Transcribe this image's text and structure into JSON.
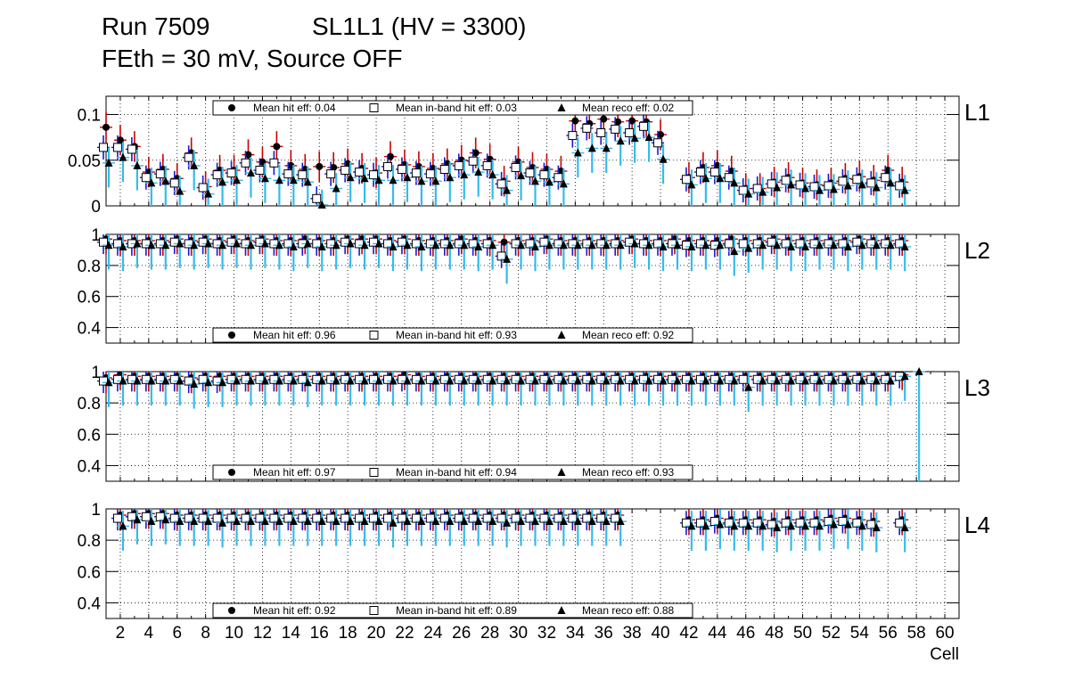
{
  "title": {
    "run": "Run 7509",
    "superlayer": "SL1L1 (HV = 3300)",
    "settings": "FEth = 30 mV, Source OFF"
  },
  "colors": {
    "hit": "#000000",
    "hit_err": "#cc0000",
    "inband_err": "#1a1acc",
    "reco_err": "#33bbee"
  },
  "chart_data": {
    "type": "scatter",
    "xlabel": "Cell",
    "xlim": [
      1,
      61
    ],
    "x_ticks": [
      "2",
      "4",
      "6",
      "8",
      "10",
      "12",
      "14",
      "16",
      "18",
      "20",
      "22",
      "24",
      "26",
      "28",
      "30",
      "32",
      "34",
      "36",
      "38",
      "40",
      "42",
      "44",
      "46",
      "48",
      "50",
      "52",
      "54",
      "56",
      "58",
      "60"
    ],
    "panels": [
      {
        "label": "L1",
        "ylim": [
          0,
          0.12
        ],
        "y_ticks": [
          "0",
          "0.05",
          "0.1"
        ],
        "legend": [
          "Mean hit  eff: 0.04",
          "Mean in-band hit eff: 0.03",
          "Mean reco eff: 0.02"
        ],
        "cells": [
          1,
          2,
          3,
          4,
          5,
          6,
          7,
          8,
          9,
          10,
          11,
          12,
          13,
          14,
          15,
          16,
          17,
          18,
          19,
          20,
          21,
          22,
          23,
          24,
          25,
          26,
          27,
          28,
          29,
          30,
          31,
          32,
          33,
          34,
          35,
          36,
          37,
          38,
          39,
          40,
          42,
          43,
          44,
          45,
          46,
          47,
          48,
          49,
          50,
          51,
          52,
          53,
          54,
          55,
          56,
          57
        ],
        "series": [
          {
            "name": "hit",
            "values": [
              0.086,
              0.072,
              0.065,
              0.037,
              0.04,
              0.03,
              0.058,
              0.021,
              0.039,
              0.039,
              0.056,
              0.048,
              0.065,
              0.044,
              0.04,
              0.043,
              0.042,
              0.046,
              0.041,
              0.036,
              0.054,
              0.045,
              0.043,
              0.041,
              0.046,
              0.05,
              0.058,
              0.051,
              0.027,
              0.048,
              0.042,
              0.04,
              0.038,
              0.093,
              0.09,
              0.095,
              0.092,
              0.093,
              0.092,
              0.078,
              0.031,
              0.042,
              0.044,
              0.038,
              0.019,
              0.019,
              0.026,
              0.031,
              0.025,
              0.023,
              0.025,
              0.03,
              0.032,
              0.028,
              0.039,
              0.026
            ]
          },
          {
            "name": "in-band hit",
            "values": [
              0.064,
              0.064,
              0.062,
              0.031,
              0.035,
              0.025,
              0.053,
              0.02,
              0.034,
              0.036,
              0.047,
              0.039,
              0.047,
              0.035,
              0.034,
              0.008,
              0.035,
              0.039,
              0.037,
              0.034,
              0.043,
              0.04,
              0.036,
              0.035,
              0.04,
              0.044,
              0.049,
              0.044,
              0.024,
              0.042,
              0.036,
              0.034,
              0.031,
              0.077,
              0.085,
              0.08,
              0.084,
              0.08,
              0.087,
              0.069,
              0.029,
              0.037,
              0.037,
              0.031,
              0.017,
              0.019,
              0.024,
              0.028,
              0.023,
              0.021,
              0.022,
              0.027,
              0.029,
              0.025,
              0.031,
              0.022
            ]
          },
          {
            "name": "reco",
            "values": [
              0.047,
              0.053,
              0.044,
              0.025,
              0.027,
              0.016,
              0.044,
              0.013,
              0.026,
              0.028,
              0.036,
              0.03,
              0.028,
              0.028,
              0.026,
              0.001,
              0.019,
              0.031,
              0.03,
              0.028,
              0.028,
              0.031,
              0.027,
              0.027,
              0.031,
              0.034,
              0.037,
              0.034,
              0.017,
              0.033,
              0.027,
              0.026,
              0.024,
              0.058,
              0.063,
              0.063,
              0.071,
              0.074,
              0.075,
              0.051,
              0.023,
              0.03,
              0.03,
              0.025,
              0.013,
              0.015,
              0.02,
              0.023,
              0.019,
              0.017,
              0.018,
              0.022,
              0.023,
              0.02,
              0.025,
              0.017
            ]
          }
        ]
      },
      {
        "label": "L2",
        "ylim": [
          0.3,
          1.0
        ],
        "y_ticks": [
          "0.4",
          "0.6",
          "0.8",
          "1"
        ],
        "legend": [
          "Mean hit  eff: 0.96",
          "Mean in-band hit eff: 0.93",
          "Mean reco eff: 0.92"
        ],
        "cells": [
          1,
          2,
          3,
          4,
          5,
          6,
          7,
          8,
          9,
          10,
          11,
          12,
          13,
          14,
          15,
          16,
          17,
          18,
          19,
          20,
          21,
          22,
          23,
          24,
          25,
          26,
          27,
          28,
          29,
          30,
          31,
          32,
          33,
          34,
          35,
          36,
          37,
          38,
          39,
          40,
          41,
          42,
          43,
          44,
          45,
          46,
          47,
          48,
          49,
          50,
          51,
          52,
          53,
          54,
          55,
          56,
          57
        ],
        "series": [
          {
            "name": "hit",
            "values": [
              0.97,
              0.96,
              0.96,
              0.96,
              0.96,
              0.97,
              0.96,
              0.97,
              0.96,
              0.97,
              0.96,
              0.97,
              0.96,
              0.96,
              0.97,
              0.96,
              0.96,
              0.97,
              0.97,
              0.97,
              0.96,
              0.97,
              0.96,
              0.96,
              0.96,
              0.97,
              0.96,
              0.96,
              0.95,
              0.96,
              0.96,
              0.97,
              0.96,
              0.96,
              0.96,
              0.96,
              0.96,
              0.97,
              0.96,
              0.96,
              0.97,
              0.96,
              0.96,
              0.96,
              0.97,
              0.96,
              0.96,
              0.97,
              0.96,
              0.96,
              0.96,
              0.96,
              0.96,
              0.97,
              0.96,
              0.96,
              0.96
            ]
          },
          {
            "name": "in-band hit",
            "values": [
              0.95,
              0.94,
              0.94,
              0.94,
              0.94,
              0.95,
              0.94,
              0.95,
              0.94,
              0.95,
              0.94,
              0.95,
              0.94,
              0.94,
              0.94,
              0.94,
              0.94,
              0.95,
              0.94,
              0.95,
              0.94,
              0.95,
              0.94,
              0.94,
              0.94,
              0.94,
              0.94,
              0.94,
              0.86,
              0.94,
              0.94,
              0.95,
              0.94,
              0.94,
              0.94,
              0.94,
              0.94,
              0.95,
              0.94,
              0.94,
              0.94,
              0.93,
              0.94,
              0.93,
              0.94,
              0.94,
              0.94,
              0.95,
              0.94,
              0.94,
              0.94,
              0.94,
              0.94,
              0.95,
              0.94,
              0.94,
              0.94
            ]
          },
          {
            "name": "reco",
            "values": [
              0.93,
              0.92,
              0.94,
              0.93,
              0.93,
              0.94,
              0.93,
              0.94,
              0.93,
              0.94,
              0.93,
              0.94,
              0.93,
              0.92,
              0.94,
              0.92,
              0.93,
              0.94,
              0.93,
              0.94,
              0.92,
              0.93,
              0.92,
              0.93,
              0.93,
              0.93,
              0.92,
              0.93,
              0.84,
              0.93,
              0.92,
              0.93,
              0.93,
              0.93,
              0.93,
              0.93,
              0.93,
              0.94,
              0.93,
              0.92,
              0.93,
              0.92,
              0.93,
              0.93,
              0.89,
              0.91,
              0.93,
              0.93,
              0.92,
              0.92,
              0.93,
              0.93,
              0.92,
              0.93,
              0.93,
              0.93,
              0.92
            ]
          }
        ]
      },
      {
        "label": "L3",
        "ylim": [
          0.3,
          1.0
        ],
        "y_ticks": [
          "0.4",
          "0.6",
          "0.8",
          "1"
        ],
        "legend": [
          "Mean hit  eff: 0.97",
          "Mean in-band hit eff: 0.94",
          "Mean reco eff: 0.93"
        ],
        "cells": [
          1,
          2,
          3,
          4,
          5,
          6,
          7,
          8,
          9,
          10,
          11,
          12,
          13,
          14,
          15,
          16,
          17,
          18,
          19,
          20,
          21,
          22,
          23,
          24,
          25,
          26,
          27,
          28,
          29,
          30,
          31,
          32,
          33,
          34,
          35,
          36,
          37,
          38,
          39,
          40,
          41,
          42,
          43,
          44,
          45,
          46,
          47,
          48,
          49,
          50,
          51,
          52,
          53,
          54,
          55,
          56,
          57,
          58
        ],
        "series": [
          {
            "name": "hit",
            "values": [
              0.96,
              0.98,
              0.97,
              0.97,
              0.97,
              0.97,
              0.96,
              0.97,
              0.97,
              0.97,
              0.97,
              0.97,
              0.97,
              0.97,
              0.97,
              0.97,
              0.97,
              0.97,
              0.97,
              0.97,
              0.97,
              0.98,
              0.97,
              0.97,
              0.97,
              0.97,
              0.97,
              0.97,
              0.97,
              0.97,
              0.97,
              0.97,
              0.97,
              0.97,
              0.97,
              0.97,
              0.97,
              0.97,
              0.97,
              0.97,
              0.97,
              0.97,
              0.97,
              0.97,
              0.97,
              0.97,
              0.97,
              0.97,
              0.97,
              0.97,
              0.97,
              0.97,
              0.97,
              0.97,
              0.97,
              0.97,
              0.98,
              null
            ]
          },
          {
            "name": "in-band hit",
            "values": [
              0.94,
              0.95,
              0.95,
              0.95,
              0.95,
              0.95,
              0.94,
              0.95,
              0.94,
              0.95,
              0.95,
              0.95,
              0.95,
              0.95,
              0.95,
              0.95,
              0.95,
              0.95,
              0.95,
              0.95,
              0.95,
              0.95,
              0.95,
              0.95,
              0.95,
              0.95,
              0.95,
              0.95,
              0.95,
              0.95,
              0.95,
              0.95,
              0.95,
              0.95,
              0.95,
              0.95,
              0.95,
              0.95,
              0.95,
              0.95,
              0.95,
              0.95,
              0.95,
              0.95,
              0.95,
              0.95,
              0.95,
              0.95,
              0.95,
              0.95,
              0.95,
              0.95,
              0.95,
              0.95,
              0.95,
              0.95,
              0.97,
              null
            ]
          },
          {
            "name": "reco",
            "values": [
              0.93,
              0.94,
              0.94,
              0.94,
              0.94,
              0.94,
              0.92,
              0.93,
              0.93,
              0.94,
              0.94,
              0.94,
              0.94,
              0.94,
              0.93,
              0.94,
              0.94,
              0.94,
              0.94,
              0.94,
              0.94,
              0.94,
              0.94,
              0.94,
              0.94,
              0.94,
              0.94,
              0.94,
              0.94,
              0.94,
              0.94,
              0.94,
              0.94,
              0.94,
              0.94,
              0.94,
              0.94,
              0.94,
              0.94,
              0.94,
              0.94,
              0.94,
              0.94,
              0.94,
              0.94,
              0.9,
              0.94,
              0.94,
              0.94,
              0.94,
              0.94,
              0.94,
              0.94,
              0.94,
              0.94,
              0.94,
              0.97,
              1.0
            ]
          }
        ]
      },
      {
        "label": "L4",
        "ylim": [
          0.3,
          1.0
        ],
        "y_ticks": [
          "0.4",
          "0.6",
          "0.8",
          "1"
        ],
        "legend": [
          "Mean hit  eff: 0.92",
          "Mean in-band hit eff: 0.89",
          "Mean reco eff: 0.88"
        ],
        "cells": [
          2,
          3,
          4,
          5,
          6,
          7,
          8,
          9,
          10,
          11,
          12,
          13,
          14,
          15,
          16,
          17,
          18,
          19,
          20,
          21,
          22,
          23,
          24,
          25,
          26,
          27,
          28,
          29,
          30,
          31,
          32,
          33,
          34,
          35,
          36,
          37,
          42,
          43,
          44,
          45,
          46,
          47,
          48,
          49,
          50,
          51,
          52,
          53,
          54,
          55,
          57
        ],
        "series": [
          {
            "name": "hit",
            "values": [
              0.96,
              0.97,
              0.97,
              0.97,
              0.96,
              0.96,
              0.96,
              0.96,
              0.96,
              0.96,
              0.96,
              0.96,
              0.96,
              0.96,
              0.96,
              0.96,
              0.96,
              0.96,
              0.96,
              0.96,
              0.96,
              0.96,
              0.96,
              0.96,
              0.96,
              0.96,
              0.96,
              0.96,
              0.96,
              0.96,
              0.96,
              0.96,
              0.96,
              0.96,
              0.96,
              0.96,
              0.93,
              0.93,
              0.94,
              0.93,
              0.93,
              0.93,
              0.92,
              0.93,
              0.93,
              0.93,
              0.94,
              0.94,
              0.93,
              0.92,
              0.93
            ]
          },
          {
            "name": "in-band hit",
            "values": [
              0.94,
              0.95,
              0.95,
              0.95,
              0.94,
              0.94,
              0.94,
              0.94,
              0.94,
              0.94,
              0.94,
              0.94,
              0.94,
              0.94,
              0.94,
              0.94,
              0.94,
              0.94,
              0.94,
              0.94,
              0.94,
              0.94,
              0.94,
              0.94,
              0.94,
              0.94,
              0.94,
              0.94,
              0.94,
              0.94,
              0.94,
              0.94,
              0.94,
              0.94,
              0.94,
              0.94,
              0.91,
              0.91,
              0.92,
              0.91,
              0.91,
              0.91,
              0.9,
              0.91,
              0.91,
              0.91,
              0.92,
              0.92,
              0.91,
              0.9,
              0.91
            ]
          },
          {
            "name": "reco",
            "values": [
              0.89,
              0.93,
              0.92,
              0.93,
              0.92,
              0.92,
              0.92,
              0.91,
              0.92,
              0.92,
              0.92,
              0.92,
              0.92,
              0.92,
              0.92,
              0.92,
              0.92,
              0.92,
              0.92,
              0.91,
              0.92,
              0.92,
              0.92,
              0.92,
              0.92,
              0.92,
              0.92,
              0.91,
              0.92,
              0.92,
              0.92,
              0.92,
              0.92,
              0.92,
              0.92,
              0.92,
              0.89,
              0.89,
              0.9,
              0.89,
              0.89,
              0.89,
              0.88,
              0.89,
              0.89,
              0.89,
              0.9,
              0.9,
              0.89,
              0.88,
              0.88
            ]
          }
        ]
      }
    ]
  }
}
